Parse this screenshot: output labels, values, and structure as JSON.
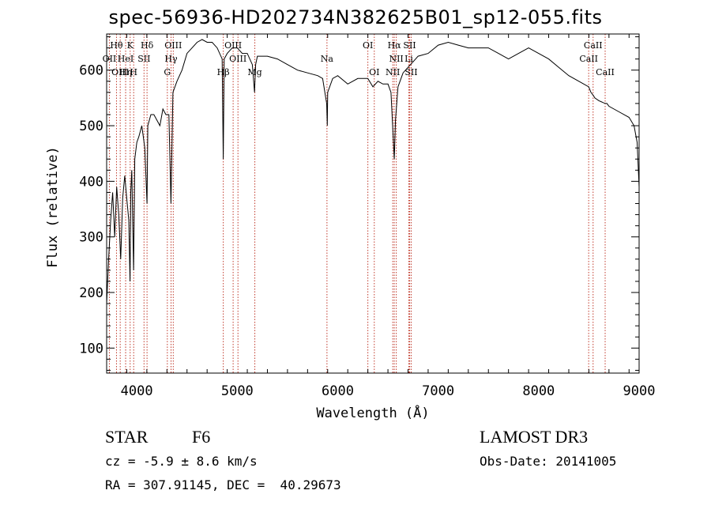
{
  "title": "spec-56936-HD202734N382625B01_sp12-055.fits",
  "info": {
    "object_class": "STAR",
    "subclass": "F6",
    "survey": "LAMOST DR3",
    "redshift_line": "cz = -5.9 ± 8.6 km/s",
    "obs_date_line": "Obs-Date: 20141005",
    "coords_line": "RA = 307.91145, DEC =  40.29673"
  },
  "chart_data": {
    "type": "line",
    "title": "spec-56936-HD202734N382625B01_sp12-055.fits",
    "xlabel": "Wavelength (Å)",
    "ylabel": "Flux (relative)",
    "xlim": [
      3700,
      9000
    ],
    "ylim": [
      55,
      665
    ],
    "xticks": [
      4000,
      5000,
      6000,
      7000,
      8000,
      9000
    ],
    "yticks": [
      100,
      200,
      300,
      400,
      500,
      600
    ],
    "x": [
      3700,
      3720,
      3740,
      3760,
      3780,
      3800,
      3820,
      3840,
      3860,
      3880,
      3900,
      3920,
      3933,
      3940,
      3950,
      3968,
      3980,
      4000,
      4020,
      4050,
      4080,
      4102,
      4110,
      4140,
      4170,
      4200,
      4230,
      4260,
      4290,
      4320,
      4340,
      4360,
      4400,
      4450,
      4500,
      4550,
      4600,
      4650,
      4700,
      4750,
      4800,
      4850,
      4861,
      4870,
      4900,
      4950,
      5000,
      5050,
      5100,
      5150,
      5172,
      5183,
      5200,
      5300,
      5400,
      5500,
      5600,
      5700,
      5800,
      5850,
      5890,
      5896,
      5900,
      5950,
      6000,
      6100,
      6200,
      6300,
      6350,
      6400,
      6450,
      6500,
      6530,
      6563,
      6575,
      6600,
      6650,
      6700,
      6750,
      6800,
      6900,
      7000,
      7100,
      7200,
      7300,
      7400,
      7500,
      7600,
      7700,
      7800,
      7900,
      8000,
      8100,
      8200,
      8300,
      8400,
      8498,
      8520,
      8542,
      8560,
      8600,
      8662,
      8680,
      8700,
      8800,
      8900,
      8950,
      8980,
      9000
    ],
    "y": [
      180,
      260,
      330,
      380,
      300,
      390,
      340,
      260,
      370,
      410,
      370,
      330,
      220,
      380,
      420,
      240,
      440,
      470,
      480,
      500,
      460,
      360,
      500,
      520,
      520,
      510,
      500,
      530,
      520,
      520,
      360,
      560,
      580,
      600,
      630,
      640,
      650,
      655,
      650,
      650,
      640,
      620,
      440,
      620,
      630,
      640,
      640,
      630,
      630,
      610,
      560,
      610,
      625,
      625,
      620,
      610,
      600,
      595,
      590,
      585,
      540,
      500,
      560,
      585,
      590,
      575,
      585,
      585,
      570,
      580,
      575,
      575,
      560,
      440,
      510,
      570,
      595,
      605,
      615,
      625,
      630,
      645,
      650,
      645,
      640,
      640,
      640,
      630,
      620,
      630,
      640,
      630,
      620,
      605,
      590,
      580,
      570,
      560,
      555,
      550,
      545,
      540,
      540,
      535,
      525,
      515,
      500,
      470,
      390
    ],
    "lines": [
      {
        "label": "Hθ",
        "wavelength": 3798,
        "label_row": 0
      },
      {
        "label": "K",
        "wavelength": 3934,
        "label_row": 0
      },
      {
        "label": "Hδ",
        "wavelength": 4102,
        "label_row": 0
      },
      {
        "label": "OIII",
        "wavelength": 4363,
        "label_row": 0
      },
      {
        "label": "OIII",
        "wavelength": 4959,
        "label_row": 0
      },
      {
        "label": "OI",
        "wavelength": 6300,
        "label_row": 0
      },
      {
        "label": "Hα",
        "wavelength": 6563,
        "label_row": 0
      },
      {
        "label": "SII",
        "wavelength": 6716,
        "label_row": 0
      },
      {
        "label": "CaII",
        "wavelength": 8542,
        "label_row": 0
      },
      {
        "label": "OII",
        "wavelength": 3727,
        "label_row": 1
      },
      {
        "label": "HeI",
        "wavelength": 3889,
        "label_row": 1
      },
      {
        "label": "SII",
        "wavelength": 4072,
        "label_row": 1
      },
      {
        "label": "Hγ",
        "wavelength": 4341,
        "label_row": 1
      },
      {
        "label": "OIII",
        "wavelength": 5007,
        "label_row": 1
      },
      {
        "label": "Na",
        "wavelength": 5893,
        "label_row": 1
      },
      {
        "label": "NII",
        "wavelength": 6583,
        "label_row": 1
      },
      {
        "label": "Li",
        "wavelength": 6708,
        "label_row": 1
      },
      {
        "label": "CaII",
        "wavelength": 8498,
        "label_row": 1
      },
      {
        "label": "OIII",
        "wavelength": 3835,
        "label_row": 2
      },
      {
        "label": "Hη",
        "wavelength": 3889,
        "label_row": 2
      },
      {
        "label": "H",
        "wavelength": 3969,
        "label_row": 2
      },
      {
        "label": "G",
        "wavelength": 4304,
        "label_row": 2
      },
      {
        "label": "Hβ",
        "wavelength": 4861,
        "label_row": 2
      },
      {
        "label": "Mg",
        "wavelength": 5175,
        "label_row": 2
      },
      {
        "label": "OI",
        "wavelength": 6364,
        "label_row": 2
      },
      {
        "label": "NII",
        "wavelength": 6548,
        "label_row": 2
      },
      {
        "label": "SII",
        "wavelength": 6731,
        "label_row": 2
      },
      {
        "label": "CaII",
        "wavelength": 8662,
        "label_row": 2
      }
    ],
    "line_color": "#c0392b",
    "spectrum_color": "#000000"
  }
}
